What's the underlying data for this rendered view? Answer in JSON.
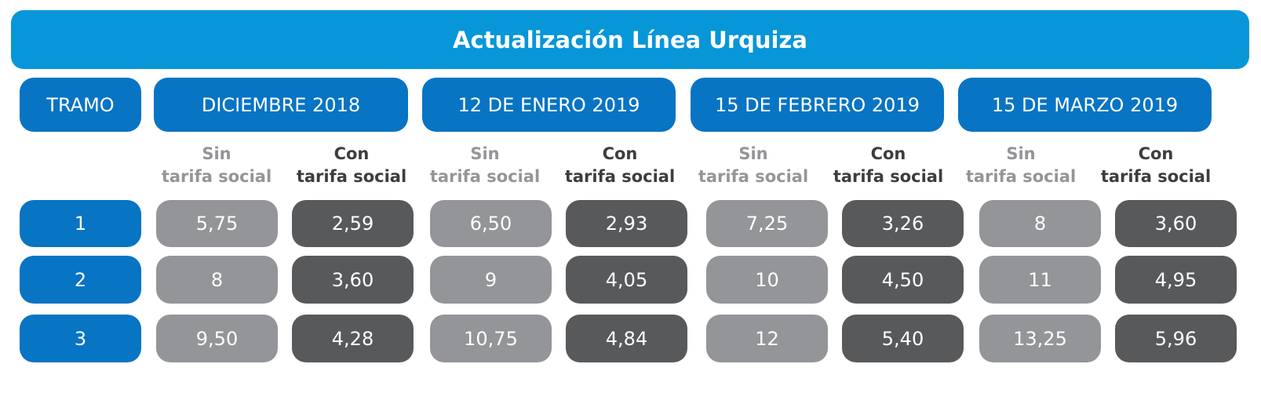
{
  "title": "Actualización Línea Urquiza",
  "header": {
    "tramo": "TRAMO",
    "periods": [
      "DICIEMBRE 2018",
      "12 DE ENERO 2019",
      "15 DE FEBRERO 2019",
      "15 DE MARZO 2019"
    ]
  },
  "subheaders": {
    "sin_line1": "Sin",
    "sin_line2": "tarifa social",
    "con_line1": "Con",
    "con_line2": "tarifa social"
  },
  "rows": [
    {
      "tramo": "1",
      "values": [
        "5,75",
        "2,59",
        "6,50",
        "2,93",
        "7,25",
        "3,26",
        "8",
        "3,60"
      ]
    },
    {
      "tramo": "2",
      "values": [
        "8",
        "3,60",
        "9",
        "4,05",
        "10",
        "4,50",
        "11",
        "4,95"
      ]
    },
    {
      "tramo": "3",
      "values": [
        "9,50",
        "4,28",
        "10,75",
        "4,84",
        "12",
        "5,40",
        "13,25",
        "5,96"
      ]
    }
  ],
  "colors": {
    "title_bar": "#0796d8",
    "header_pill": "#0874c4",
    "sin_cell": "#939598",
    "con_cell": "#58595b"
  }
}
